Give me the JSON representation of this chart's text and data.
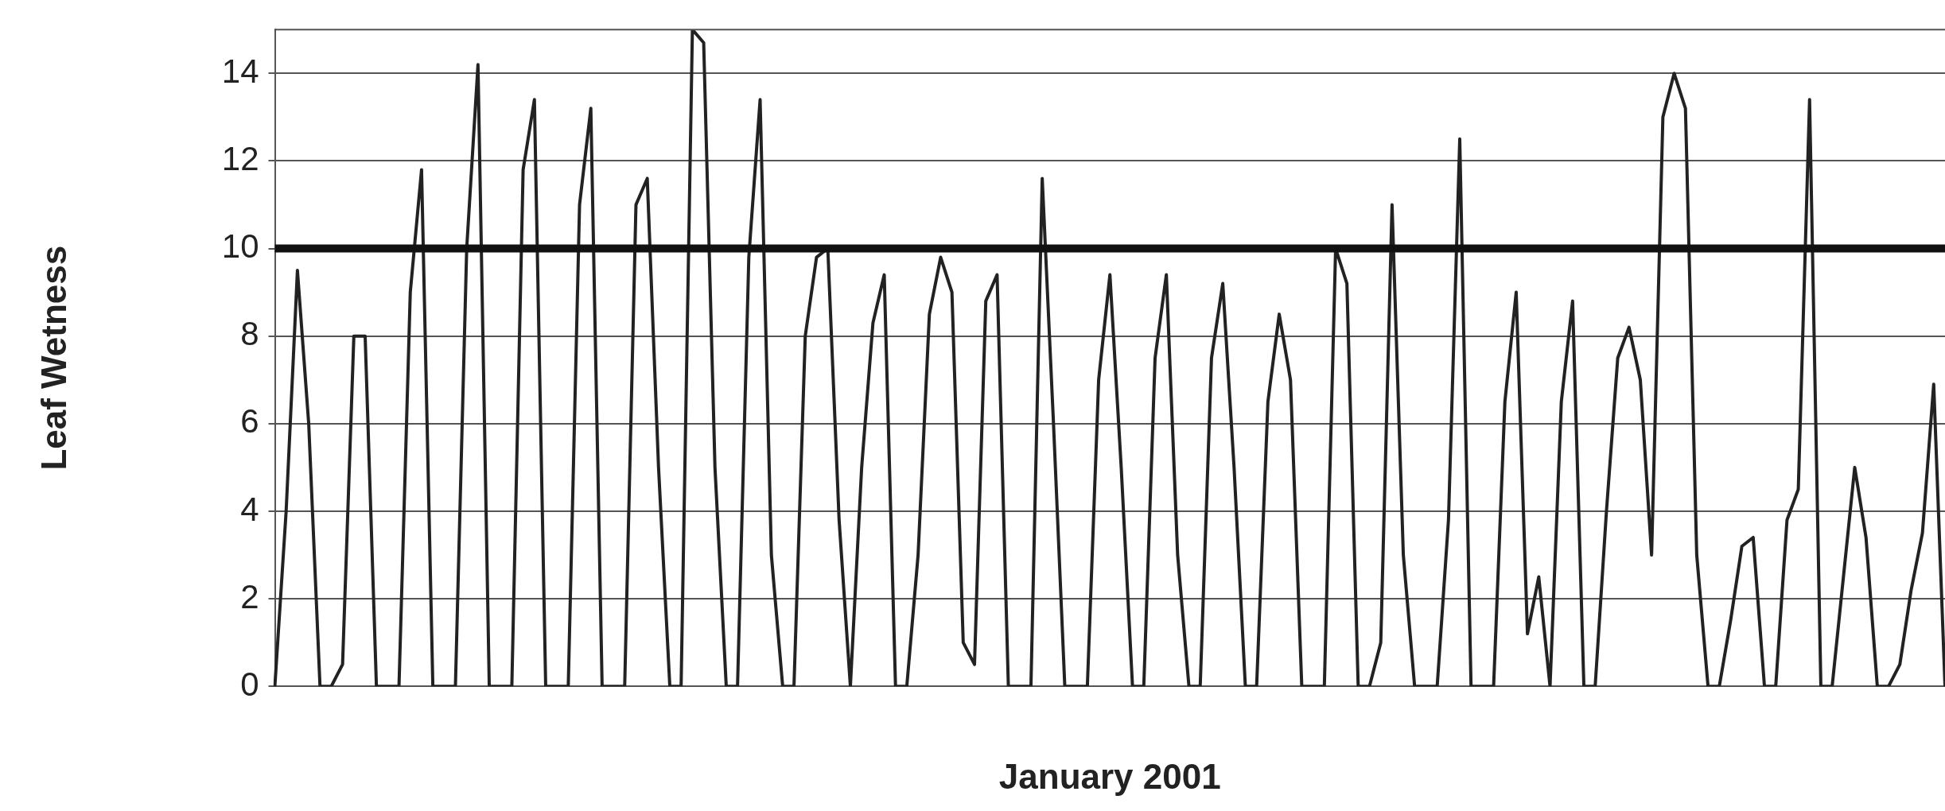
{
  "chart_data": {
    "type": "line",
    "xlabel": "January 2001",
    "ylabel": "Leaf Wetness",
    "categories": [
      null,
      null,
      null,
      null,
      null,
      null,
      null,
      null,
      null,
      null,
      null,
      null,
      null,
      null,
      null,
      null,
      null,
      null,
      null,
      null,
      null,
      null,
      null,
      null,
      null,
      null,
      null,
      null,
      null,
      null,
      null,
      null,
      null,
      null,
      null,
      null,
      null,
      null,
      null,
      null,
      null,
      null,
      null,
      null,
      null,
      null,
      null,
      null,
      null,
      null,
      null,
      null,
      null,
      null,
      null,
      null,
      null,
      null,
      null,
      null,
      null,
      null,
      null,
      null,
      null,
      null,
      null,
      null,
      null,
      null,
      null,
      null,
      null,
      null,
      null,
      null,
      null,
      null,
      null,
      null,
      null,
      null,
      null,
      null,
      null,
      null,
      null,
      null,
      null,
      null,
      null,
      null,
      null,
      null,
      null,
      null,
      null,
      null,
      null,
      null,
      null,
      null,
      null,
      null,
      null,
      null,
      null,
      null,
      null,
      null,
      null,
      null,
      null,
      null,
      null,
      null,
      null,
      null,
      null,
      null,
      null,
      null,
      null,
      null,
      null,
      null,
      null,
      null,
      null,
      null,
      null,
      null,
      null,
      null,
      null,
      null,
      null,
      null,
      null,
      null,
      null,
      null,
      null,
      null,
      null,
      null,
      null,
      null,
      null
    ],
    "series": [
      {
        "color": "#222222",
        "values": [
          0,
          4,
          9.5,
          6,
          0,
          0,
          0.5,
          8,
          8,
          0,
          0,
          0,
          9,
          11.8,
          0,
          0,
          0,
          10,
          14.2,
          0,
          0,
          0,
          11.8,
          13.4,
          0,
          0,
          0,
          11,
          13.2,
          0,
          0,
          0,
          11,
          11.6,
          5,
          0,
          0,
          15,
          14.7,
          5,
          0,
          0,
          9.8,
          13.4,
          3,
          0,
          0,
          8,
          9.8,
          10,
          3.8,
          0,
          5,
          8.3,
          9.4,
          0,
          0,
          3,
          8.5,
          9.8,
          9,
          1,
          0.5,
          8.8,
          9.4,
          0,
          0,
          0,
          11.6,
          6,
          0,
          0,
          0,
          7,
          9.4,
          5,
          0,
          0,
          7.5,
          9.4,
          3,
          0,
          0,
          7.5,
          9.2,
          5,
          0,
          0,
          6.5,
          8.5,
          7,
          0,
          0,
          0,
          10,
          9.2,
          0,
          0,
          1,
          11,
          3,
          0,
          0,
          0,
          3.8,
          12.5,
          0,
          0,
          0,
          6.5,
          9,
          1.2,
          2.5,
          0,
          6.5,
          8.8,
          0,
          0,
          4,
          7.5,
          8.2,
          7,
          3,
          13,
          14,
          13.2,
          3,
          0,
          0,
          1.5,
          3.2,
          3.4,
          0,
          0,
          3.8,
          4.5,
          13.4,
          0,
          0,
          2.5,
          5,
          3.4,
          0,
          0,
          0.5,
          2.2,
          3.5,
          6.9,
          0
        ]
      }
    ],
    "ylim": [
      0,
      15
    ],
    "yticks": [
      0,
      2,
      4,
      6,
      8,
      10,
      12,
      14
    ],
    "grid": "y",
    "tick_labels": "y",
    "marker": "none",
    "line_style": "solid",
    "legend": false,
    "ref_lines": [
      {
        "axis": "y",
        "value": 10,
        "color": "#111111"
      }
    ]
  }
}
